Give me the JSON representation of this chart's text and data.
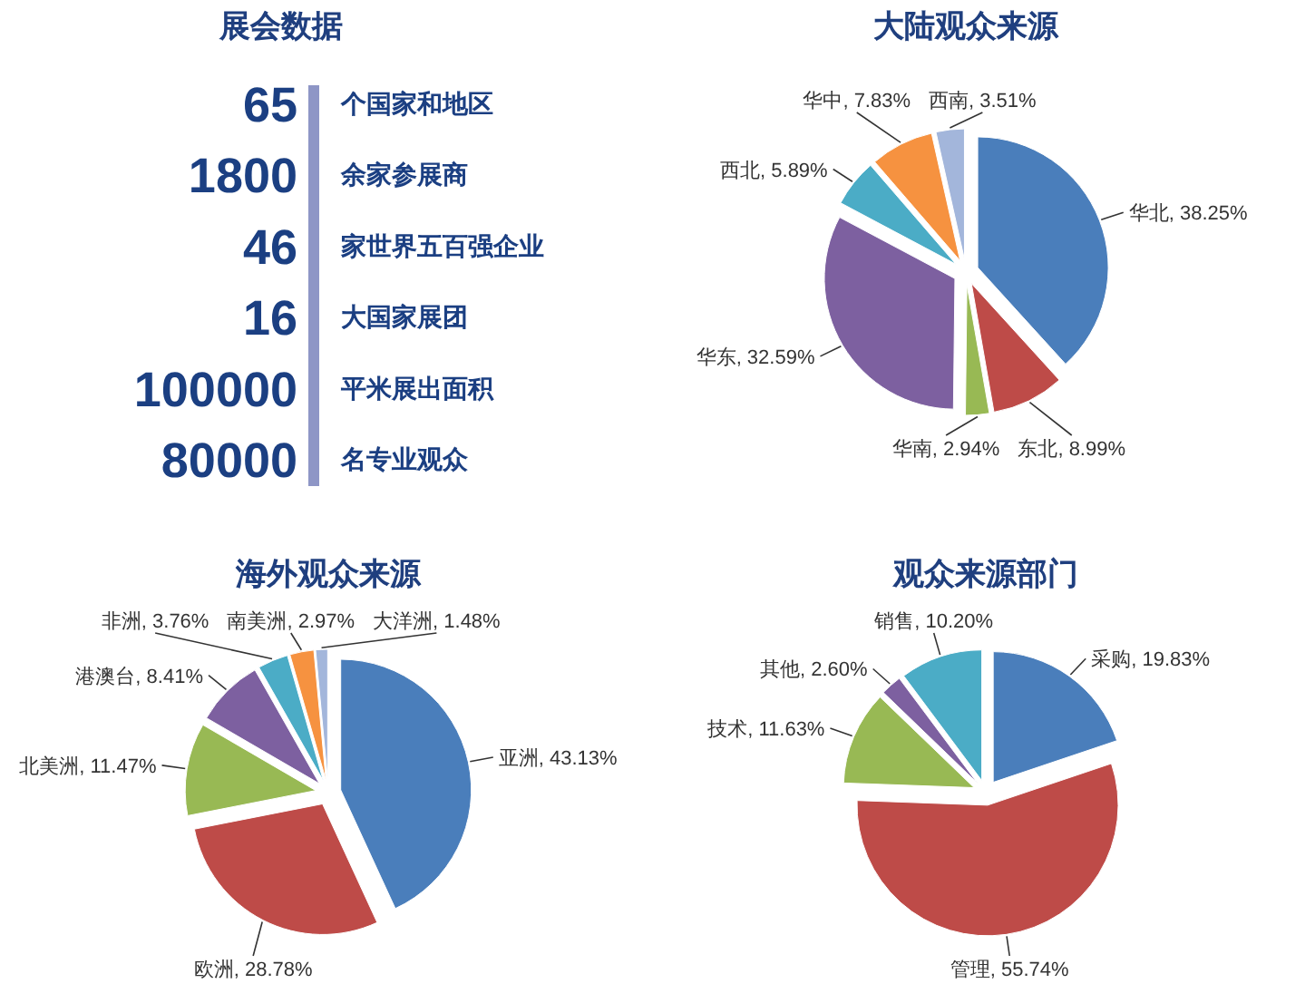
{
  "chart_data": [
    {
      "type": "other",
      "title": "展会数据",
      "categories": [
        "个国家和地区",
        "余家参展商",
        "家世界五百强企业",
        "大国家展团",
        "平米展出面积",
        "名专业观众"
      ],
      "values": [
        65,
        1800,
        46,
        16,
        100000,
        80000
      ],
      "data_labels": true,
      "color": "#1b3f82"
    },
    {
      "type": "pie",
      "title": "大陆观众来源",
      "categories": [
        "华北",
        "东北",
        "华南",
        "华东",
        "西北",
        "华中",
        "西南"
      ],
      "values": [
        38.25,
        8.99,
        2.94,
        32.59,
        5.89,
        7.83,
        3.51
      ],
      "value_labels": [
        "38.25%",
        "8.99%",
        "2.94%",
        "32.59%",
        "5.89%",
        "7.83%",
        "3.51%"
      ],
      "colors": [
        "#4a7ebb",
        "#be4b48",
        "#98b954",
        "#7d60a0",
        "#4bacc6",
        "#f69240",
        "#a3b6db"
      ]
    },
    {
      "type": "pie",
      "title": "海外观众来源",
      "categories": [
        "亚洲",
        "欧洲",
        "北美洲",
        "港澳台",
        "非洲",
        "南美洲",
        "大洋洲"
      ],
      "values": [
        43.13,
        28.78,
        11.47,
        8.41,
        3.76,
        2.97,
        1.48
      ],
      "value_labels": [
        "43.13%",
        "28.78%",
        "11.47%",
        "8.41%",
        "3.76%",
        "2.97%",
        "1.48%"
      ],
      "colors": [
        "#4a7ebb",
        "#be4b48",
        "#98b954",
        "#7d60a0",
        "#4bacc6",
        "#f69240",
        "#a3b6db"
      ]
    },
    {
      "type": "pie",
      "title": "观众来源部门",
      "categories": [
        "采购",
        "管理",
        "技术",
        "其他",
        "销售"
      ],
      "values": [
        19.83,
        55.74,
        11.63,
        2.6,
        10.2
      ],
      "value_labels": [
        "19.83%",
        "55.74%",
        "11.63%",
        "2.60%",
        "10.20%"
      ],
      "colors": [
        "#4a7ebb",
        "#be4b48",
        "#98b954",
        "#7d60a0",
        "#4bacc6"
      ]
    }
  ]
}
